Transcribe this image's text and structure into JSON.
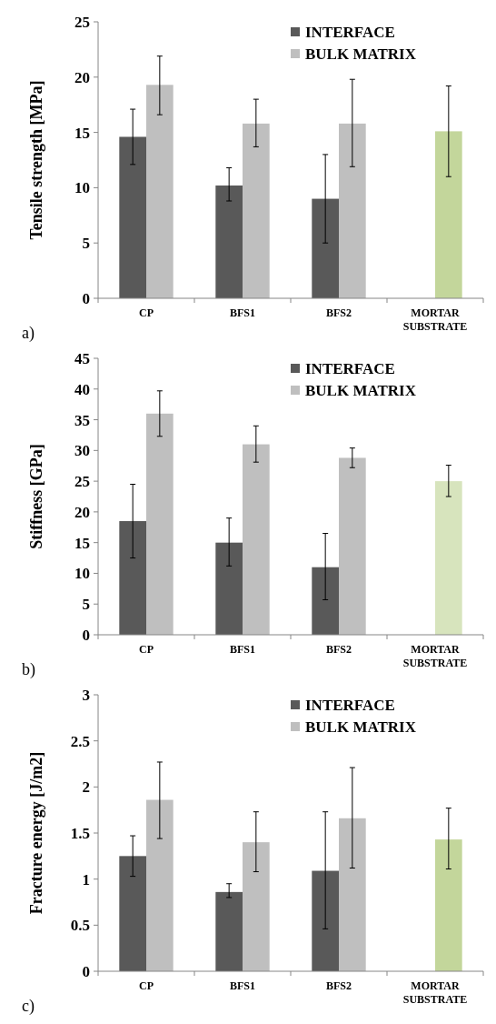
{
  "chart_data": [
    {
      "type": "bar",
      "ylabel": "Tensile strength [MPa]",
      "categories": [
        "CP",
        "BFS1",
        "BFS2",
        "MORTAR SUBSTRATE"
      ],
      "ylim": [
        0,
        25
      ],
      "yticks": [
        0,
        5,
        10,
        15,
        20,
        25
      ],
      "legend": "top right",
      "annotations": [
        "a)"
      ],
      "series": [
        {
          "name": "INTERFACE",
          "color": "#595959",
          "values": [
            14.6,
            10.2,
            9.0,
            null
          ],
          "errors": [
            [
              12.1,
              17.1
            ],
            [
              8.8,
              11.8
            ],
            [
              5.0,
              13.0
            ],
            null
          ]
        },
        {
          "name": "BULK MATRIX",
          "color": "#bfbfbf",
          "colors": [
            "#bfbfbf",
            "#bfbfbf",
            "#bfbfbf",
            "#c3d69b"
          ],
          "values": [
            19.3,
            15.8,
            15.8,
            15.1
          ],
          "errors": [
            [
              16.6,
              21.9
            ],
            [
              13.7,
              18.0
            ],
            [
              11.9,
              19.8
            ],
            [
              11.0,
              19.2
            ]
          ]
        }
      ]
    },
    {
      "type": "bar",
      "ylabel": "Stiffness [GPa]",
      "categories": [
        "CP",
        "BFS1",
        "BFS2",
        "MORTAR SUBSTRATE"
      ],
      "ylim": [
        0,
        45
      ],
      "yticks": [
        0,
        5,
        10,
        15,
        20,
        25,
        30,
        35,
        40,
        45
      ],
      "legend": "top right",
      "annotations": [
        "b)"
      ],
      "series": [
        {
          "name": "INTERFACE",
          "color": "#595959",
          "values": [
            18.5,
            15.0,
            11.0,
            null
          ],
          "errors": [
            [
              12.5,
              24.5
            ],
            [
              11.2,
              19.0
            ],
            [
              5.7,
              16.5
            ],
            null
          ]
        },
        {
          "name": "BULK MATRIX",
          "color": "#bfbfbf",
          "colors": [
            "#bfbfbf",
            "#bfbfbf",
            "#bfbfbf",
            "#d7e4bd"
          ],
          "values": [
            36.0,
            31.0,
            28.8,
            25.0
          ],
          "errors": [
            [
              32.3,
              39.7
            ],
            [
              28.1,
              34.0
            ],
            [
              27.2,
              30.4
            ],
            [
              22.5,
              27.6
            ]
          ]
        }
      ]
    },
    {
      "type": "bar",
      "ylabel": "Fracture energy [J/m2]",
      "categories": [
        "CP",
        "BFS1",
        "BFS2",
        "MORTAR SUBSTRATE"
      ],
      "ylim": [
        0,
        3
      ],
      "yticks": [
        0,
        0.5,
        1,
        1.5,
        2,
        2.5,
        3
      ],
      "legend": "top right",
      "annotations": [
        "c)"
      ],
      "series": [
        {
          "name": "INTERFACE",
          "color": "#595959",
          "values": [
            1.25,
            0.86,
            1.09,
            null
          ],
          "errors": [
            [
              1.03,
              1.47
            ],
            [
              0.8,
              0.95
            ],
            [
              0.46,
              1.73
            ],
            null
          ]
        },
        {
          "name": "BULK MATRIX",
          "color": "#bfbfbf",
          "colors": [
            "#bfbfbf",
            "#bfbfbf",
            "#bfbfbf",
            "#c3d69b"
          ],
          "values": [
            1.86,
            1.4,
            1.66,
            1.43
          ],
          "errors": [
            [
              1.44,
              2.27
            ],
            [
              1.08,
              1.73
            ],
            [
              1.12,
              2.21
            ],
            [
              1.11,
              1.77
            ]
          ]
        }
      ]
    }
  ]
}
